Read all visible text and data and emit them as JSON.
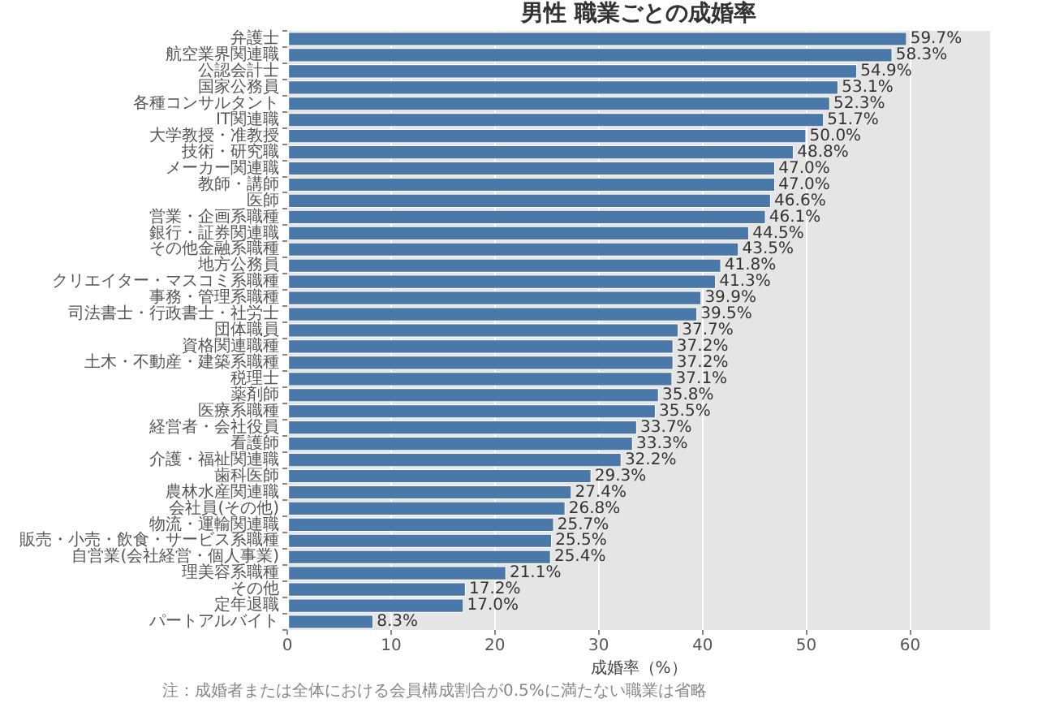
{
  "chart_data": {
    "type": "bar",
    "orientation": "horizontal",
    "title": "男性 職業ごとの成婚率",
    "categories": [
      "弁護士",
      "航空業界関連職",
      "公認会計士",
      "国家公務員",
      "各種コンサルタント",
      "IT関連職",
      "大学教授・准教授",
      "技術・研究職",
      "メーカー関連職",
      "教師・講師",
      "医師",
      "営業・企画系職種",
      "銀行・証券関連職",
      "その他金融系職種",
      "地方公務員",
      "クリエイター・マスコミ系職種",
      "事務・管理系職種",
      "司法書士・行政書士・社労士",
      "団体職員",
      "資格関連職種",
      "土木・不動産・建築系職種",
      "税理士",
      "薬剤師",
      "医療系職種",
      "経営者・会社役員",
      "看護師",
      "介護・福祉関連職",
      "歯科医師",
      "農林水産関連職",
      "会社員(その他)",
      "物流・運輸関連職",
      "販売・小売・飲食・サービス系職種",
      "自営業(会社経営・個人事業)",
      "理美容系職種",
      "その他",
      "定年退職",
      "パートアルバイト"
    ],
    "values": [
      59.7,
      58.3,
      54.9,
      53.1,
      52.3,
      51.7,
      50.0,
      48.8,
      47.0,
      47.0,
      46.6,
      46.1,
      44.5,
      43.5,
      41.8,
      41.3,
      39.9,
      39.5,
      37.7,
      37.2,
      37.2,
      37.1,
      35.8,
      35.5,
      33.7,
      33.3,
      32.2,
      29.3,
      27.4,
      26.8,
      25.7,
      25.5,
      25.4,
      21.1,
      17.2,
      17.0,
      8.3
    ],
    "value_labels": [
      "59.7%",
      "58.3%",
      "54.9%",
      "53.1%",
      "52.3%",
      "51.7%",
      "50.0%",
      "48.8%",
      "47.0%",
      "47.0%",
      "46.6%",
      "46.1%",
      "44.5%",
      "43.5%",
      "41.8%",
      "41.3%",
      "39.9%",
      "39.5%",
      "37.7%",
      "37.2%",
      "37.2%",
      "37.1%",
      "35.8%",
      "35.5%",
      "33.7%",
      "33.3%",
      "32.2%",
      "29.3%",
      "27.4%",
      "26.8%",
      "25.7%",
      "25.5%",
      "25.4%",
      "21.1%",
      "17.2%",
      "17.0%",
      "8.3%"
    ],
    "color": "#4a78a8",
    "xlabel": "成婚率（%）",
    "xlim": [
      0,
      67.7
    ],
    "xticks": [
      0,
      10,
      20,
      30,
      40,
      50,
      60
    ],
    "grid": "x",
    "annotations": [
      "注：成婚者または全体における会員構成割合が0.5%に満たない職業は省略"
    ]
  }
}
